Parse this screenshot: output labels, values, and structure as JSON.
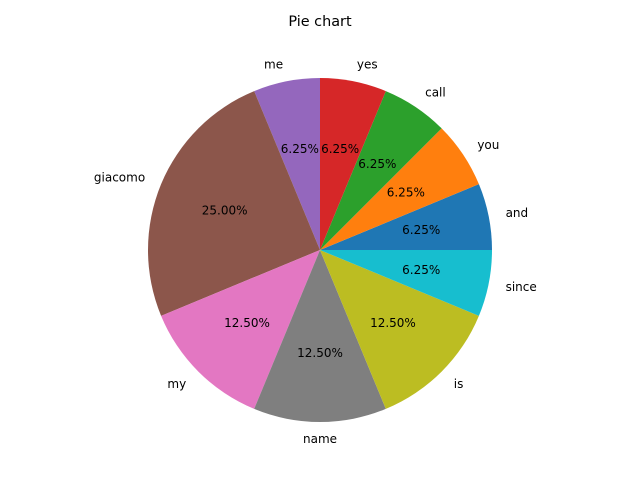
{
  "chart_data": {
    "type": "pie",
    "title": "Pie chart",
    "autopct_format": "%.2f%%",
    "start_angle_deg": 0,
    "direction": "counterclockwise",
    "legend": "none",
    "slices": [
      {
        "label": "and",
        "value": 6.25,
        "color": "#1f77b4"
      },
      {
        "label": "you",
        "value": 6.25,
        "color": "#ff7f0e"
      },
      {
        "label": "call",
        "value": 6.25,
        "color": "#2ca02c"
      },
      {
        "label": "yes",
        "value": 6.25,
        "color": "#d62728"
      },
      {
        "label": "me",
        "value": 6.25,
        "color": "#9467bd"
      },
      {
        "label": "giacomo",
        "value": 25.0,
        "color": "#8c564b"
      },
      {
        "label": "my",
        "value": 12.5,
        "color": "#e377c2"
      },
      {
        "label": "name",
        "value": 12.5,
        "color": "#7f7f7f"
      },
      {
        "label": "is",
        "value": 12.5,
        "color": "#bcbd22"
      },
      {
        "label": "since",
        "value": 6.25,
        "color": "#17becf"
      }
    ]
  }
}
